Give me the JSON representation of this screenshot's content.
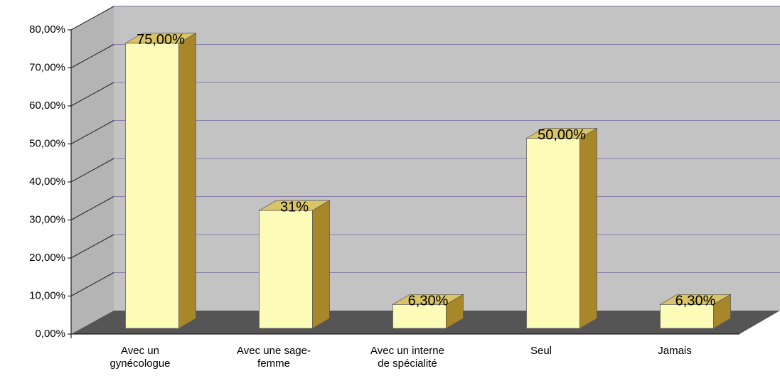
{
  "chart_data": {
    "type": "bar",
    "categories": [
      "Avec un\ngynécologue",
      "Avec une sage-\nfemme",
      "Avec un interne\nde spécialité",
      "Seul",
      "Jamais"
    ],
    "values": [
      75,
      31,
      6.3,
      50,
      6.3
    ],
    "value_labels": [
      "75,00%",
      "31%",
      "6,30%",
      "50,00%",
      "6,30%"
    ],
    "color": "#fdfbb8",
    "ylim": [
      0,
      80
    ],
    "yticks": [
      {
        "value": 0,
        "label": "0,00%"
      },
      {
        "value": 10,
        "label": "10,00%"
      },
      {
        "value": 20,
        "label": "20,00%"
      },
      {
        "value": 30,
        "label": "30,00%"
      },
      {
        "value": 40,
        "label": "40,00%"
      },
      {
        "value": 50,
        "label": "50,00%"
      },
      {
        "value": 60,
        "label": "60,00%"
      },
      {
        "value": 70,
        "label": "70,00%"
      },
      {
        "value": 80,
        "label": "80,00%"
      }
    ],
    "grid": true
  }
}
